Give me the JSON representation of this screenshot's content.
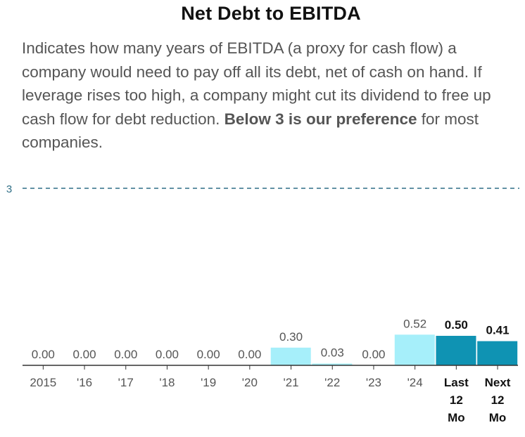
{
  "header": {
    "title": "Net Debt to EBITDA",
    "description": "Indicates how many years of EBITDA (a proxy for cash flow) a company would need to pay off all its debt, net of cash on hand. If leverage rises too high, a company might cut its dividend to free up cash flow for debt reduction. ",
    "emphasis": "Below 3 is our preference",
    "description_tail": " for most companies."
  },
  "chart_data": {
    "type": "bar",
    "title": "Net Debt to EBITDA",
    "xlabel": "",
    "ylabel": "",
    "ylim": [
      0,
      3
    ],
    "grid": false,
    "reference_line": {
      "value": 3,
      "label": "3",
      "color": "#2f6f86"
    },
    "categories": [
      "2015",
      "'16",
      "'17",
      "'18",
      "'19",
      "'20",
      "'21",
      "'22",
      "'23",
      "'24",
      "Last 12 Mo",
      "Next 12 Mo"
    ],
    "category_lines": [
      [
        "2015"
      ],
      [
        "'16"
      ],
      [
        "'17"
      ],
      [
        "'18"
      ],
      [
        "'19"
      ],
      [
        "'20"
      ],
      [
        "'21"
      ],
      [
        "'22"
      ],
      [
        "'23"
      ],
      [
        "'24"
      ],
      [
        "Last",
        "12",
        "Mo"
      ],
      [
        "Next",
        "12",
        "Mo"
      ]
    ],
    "values": [
      0.0,
      0.0,
      0.0,
      0.0,
      0.0,
      0.0,
      0.3,
      0.03,
      0.0,
      0.52,
      0.5,
      0.41
    ],
    "value_labels": [
      "0.00",
      "0.00",
      "0.00",
      "0.00",
      "0.00",
      "0.00",
      "0.30",
      "0.03",
      "0.00",
      "0.52",
      "0.50",
      "0.41"
    ],
    "highlight": [
      false,
      false,
      false,
      false,
      false,
      false,
      false,
      false,
      false,
      false,
      true,
      true
    ],
    "colors": {
      "annual": "#a6effa",
      "trailing": "#0f93b3",
      "axis": "#333333",
      "label": "#555555",
      "label_bold": "#111111"
    }
  }
}
